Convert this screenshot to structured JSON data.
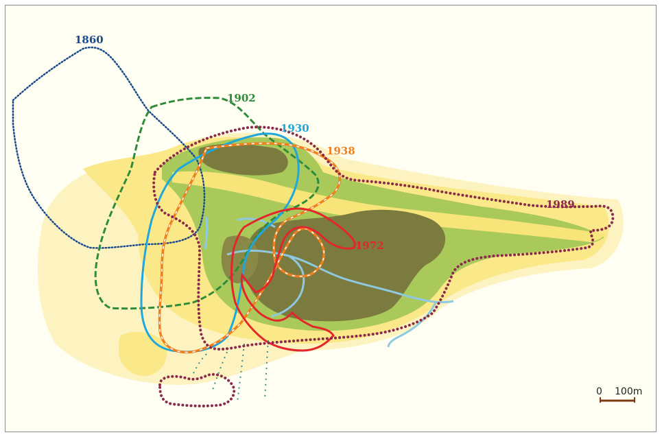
{
  "map": {
    "boundaries": [
      {
        "year": "1860",
        "color": "#1a4a8c"
      },
      {
        "year": "1902",
        "color": "#2e8b3a"
      },
      {
        "year": "1930",
        "color": "#1fa6dc"
      },
      {
        "year": "1938",
        "color": "#f07f1e"
      },
      {
        "year": "1972",
        "color": "#e3262b"
      },
      {
        "year": "1989",
        "color": "#8b2a4a"
      }
    ],
    "colors": {
      "background": "#fffef2",
      "dune_pale": "#fdf3c0",
      "dune_yellow": "#fbe889",
      "vegetation_light": "#a9c95a",
      "vegetation_dark": "#7b7a3f",
      "water": "#8ec9e0"
    },
    "scale_bar": {
      "zero": "0",
      "distance": "100m"
    }
  }
}
